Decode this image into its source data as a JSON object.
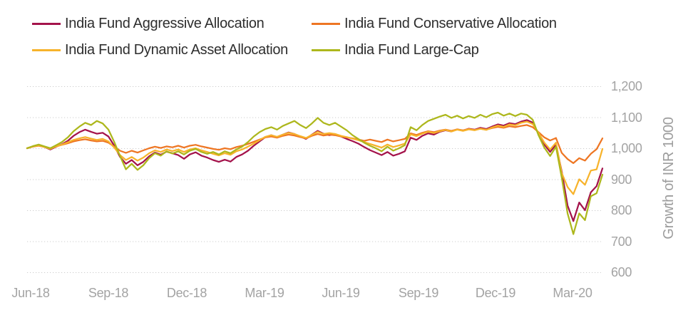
{
  "chart_data": {
    "type": "line",
    "title": "",
    "xlabel": "",
    "ylabel": "Growth of INR 1000",
    "x_tick_labels": [
      "Jun-18",
      "Sep-18",
      "Dec-18",
      "Mar-19",
      "Jun-19",
      "Sep-19",
      "Dec-19",
      "Mar-20"
    ],
    "y_ticks": [
      600,
      700,
      800,
      900,
      1000,
      1100,
      1200
    ],
    "ylim": [
      600,
      1200
    ],
    "grid": "horizontal-dotted",
    "legend_position": "top-left-two-columns",
    "axis_text_color": "#a3a3a3",
    "grid_color": "#cccccc",
    "series": [
      {
        "name": "India Fund Aggressive Allocation",
        "color": "#a4134b",
        "values": [
          1000,
          1006,
          1010,
          1004,
          996,
          1005,
          1013,
          1024,
          1040,
          1052,
          1060,
          1053,
          1047,
          1050,
          1038,
          1008,
          972,
          950,
          962,
          945,
          956,
          974,
          986,
          979,
          989,
          984,
          978,
          966,
          980,
          987,
          976,
          970,
          962,
          956,
          963,
          957,
          972,
          980,
          992,
          1008,
          1022,
          1036,
          1042,
          1036,
          1044,
          1051,
          1046,
          1038,
          1030,
          1044,
          1056,
          1047,
          1042,
          1046,
          1038,
          1030,
          1023,
          1015,
          1004,
          994,
          986,
          978,
          988,
          976,
          982,
          990,
          1034,
          1027,
          1040,
          1048,
          1044,
          1053,
          1058,
          1054,
          1061,
          1057,
          1063,
          1060,
          1066,
          1062,
          1070,
          1077,
          1073,
          1081,
          1078,
          1086,
          1091,
          1083,
          1046,
          1012,
          988,
          1012,
          925,
          815,
          765,
          825,
          800,
          858,
          878,
          935
        ]
      },
      {
        "name": "India Fund Conservative Allocation",
        "color": "#ee7623",
        "values": [
          1000,
          1005,
          1008,
          1004,
          1000,
          1006,
          1011,
          1016,
          1022,
          1026,
          1029,
          1025,
          1022,
          1024,
          1018,
          1005,
          992,
          985,
          992,
          986,
          993,
          1000,
          1005,
          1001,
          1006,
          1003,
          1008,
          1002,
          1008,
          1011,
          1006,
          1002,
          998,
          995,
          1000,
          997,
          1004,
          1008,
          1014,
          1021,
          1028,
          1035,
          1038,
          1034,
          1040,
          1044,
          1041,
          1036,
          1032,
          1040,
          1046,
          1041,
          1044,
          1042,
          1038,
          1035,
          1032,
          1028,
          1024,
          1028,
          1024,
          1020,
          1028,
          1022,
          1026,
          1030,
          1048,
          1043,
          1050,
          1055,
          1052,
          1057,
          1060,
          1056,
          1061,
          1058,
          1062,
          1059,
          1063,
          1060,
          1065,
          1069,
          1066,
          1071,
          1068,
          1072,
          1075,
          1068,
          1052,
          1035,
          1025,
          1033,
          985,
          965,
          952,
          968,
          960,
          982,
          997,
          1032
        ]
      },
      {
        "name": "India Fund Dynamic Asset Allocation",
        "color": "#f7b32b",
        "values": [
          1000,
          1006,
          1009,
          1004,
          998,
          1006,
          1012,
          1019,
          1027,
          1032,
          1036,
          1031,
          1027,
          1030,
          1022,
          1002,
          978,
          962,
          972,
          960,
          970,
          984,
          993,
          988,
          996,
          991,
          996,
          988,
          996,
          1000,
          993,
          988,
          982,
          977,
          984,
          979,
          990,
          996,
          1005,
          1015,
          1026,
          1037,
          1042,
          1037,
          1044,
          1050,
          1046,
          1039,
          1033,
          1043,
          1053,
          1046,
          1049,
          1046,
          1040,
          1036,
          1031,
          1026,
          1020,
          1014,
          1008,
          1002,
          1012,
          1004,
          1009,
          1015,
          1045,
          1039,
          1047,
          1053,
          1049,
          1055,
          1059,
          1054,
          1060,
          1056,
          1061,
          1058,
          1063,
          1059,
          1067,
          1073,
          1069,
          1077,
          1074,
          1082,
          1086,
          1078,
          1050,
          1018,
          996,
          1018,
          920,
          875,
          852,
          900,
          882,
          928,
          932,
          998
        ]
      },
      {
        "name": "India Fund Large-Cap",
        "color": "#adb71c",
        "values": [
          1000,
          1007,
          1012,
          1006,
          1000,
          1010,
          1020,
          1035,
          1055,
          1070,
          1082,
          1075,
          1088,
          1080,
          1060,
          1020,
          975,
          932,
          950,
          930,
          945,
          968,
          984,
          976,
          990,
          983,
          990,
          980,
          992,
          998,
          988,
          982,
          988,
          980,
          990,
          984,
          996,
          1005,
          1020,
          1038,
          1052,
          1062,
          1068,
          1060,
          1072,
          1080,
          1088,
          1075,
          1065,
          1080,
          1098,
          1082,
          1075,
          1082,
          1070,
          1058,
          1042,
          1030,
          1018,
          1008,
          1000,
          990,
          1005,
          992,
          1000,
          1010,
          1068,
          1058,
          1075,
          1088,
          1095,
          1102,
          1108,
          1098,
          1105,
          1096,
          1104,
          1098,
          1108,
          1100,
          1110,
          1115,
          1105,
          1112,
          1104,
          1112,
          1108,
          1092,
          1042,
          1002,
          975,
          1005,
          905,
          790,
          723,
          790,
          768,
          845,
          855,
          915
        ]
      }
    ]
  }
}
